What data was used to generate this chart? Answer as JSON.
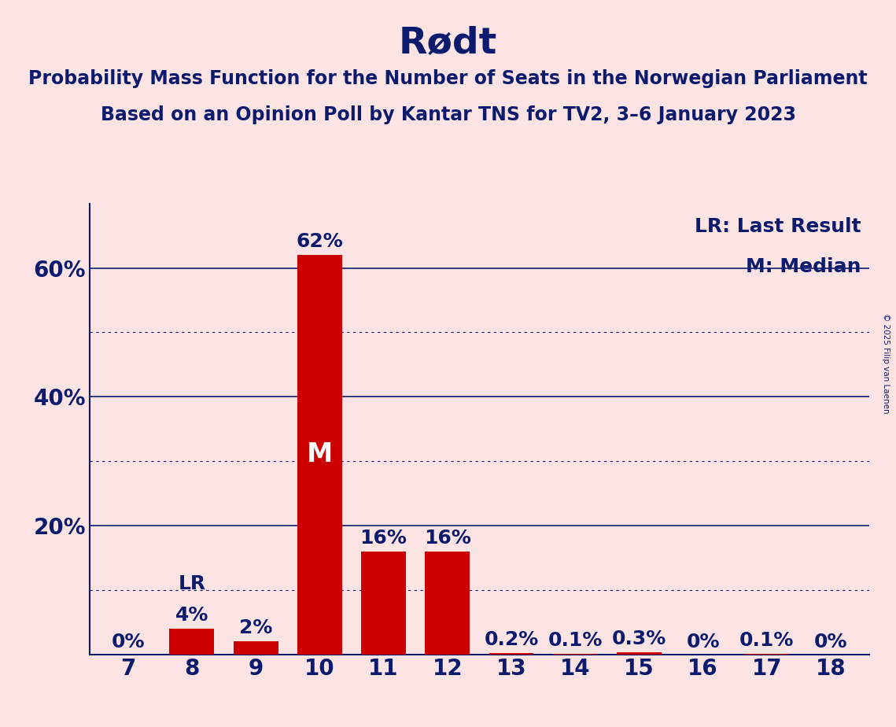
{
  "title": "Rødt",
  "subtitle_line1": "Probability Mass Function for the Number of Seats in the Norwegian Parliament",
  "subtitle_line2": "Based on an Opinion Poll by Kantar TNS for TV2, 3–6 January 2023",
  "copyright_text": "© 2025 Filip van Laenen",
  "categories": [
    7,
    8,
    9,
    10,
    11,
    12,
    13,
    14,
    15,
    16,
    17,
    18
  ],
  "values": [
    0.0,
    4.0,
    2.0,
    62.0,
    16.0,
    16.0,
    0.2,
    0.1,
    0.3,
    0.0,
    0.1,
    0.0
  ],
  "bar_labels": [
    "0%",
    "4%",
    "2%",
    "62%",
    "16%",
    "16%",
    "0.2%",
    "0.1%",
    "0.3%",
    "0%",
    "0.1%",
    "0%"
  ],
  "bar_color": "#cc0000",
  "background_color": "#fce4e4",
  "text_color": "#0d1b6e",
  "title_fontsize": 34,
  "subtitle_fontsize": 17,
  "bar_label_fontsize": 18,
  "axis_tick_fontsize": 20,
  "legend_fontsize": 18,
  "ylim": [
    0,
    70
  ],
  "yticks": [
    20,
    40,
    60
  ],
  "ytick_labels": [
    "20%",
    "40%",
    "60%"
  ],
  "solid_gridlines": [
    20,
    40,
    60
  ],
  "dotted_gridlines": [
    10,
    30,
    50
  ],
  "median_bar": 10,
  "lr_bar": 8,
  "legend_lr": "LR: Last Result",
  "legend_m": "M: Median"
}
